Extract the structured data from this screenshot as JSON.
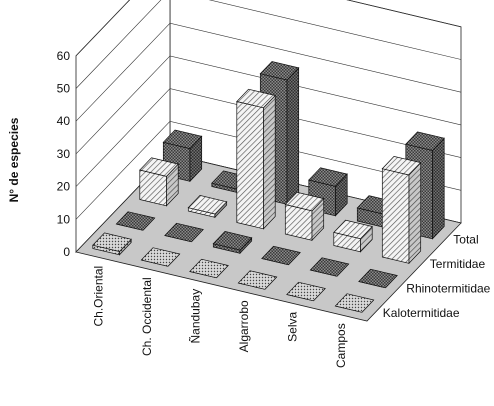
{
  "chart_data": {
    "type": "bar",
    "subtype": "3d-bar",
    "title": "",
    "ylabel": "N° de especies",
    "ylim": [
      0,
      60
    ],
    "yticks": [
      0,
      10,
      20,
      30,
      40,
      50,
      60
    ],
    "categories": [
      "Ch.Oriental",
      "Ch. Occidental",
      "Ñandubay",
      "Algarrobo",
      "Selva",
      "Campos"
    ],
    "series": [
      {
        "name": "Kalotermitidae",
        "values": [
          1,
          0,
          0,
          0,
          0,
          0
        ]
      },
      {
        "name": "Rhinotermitidae",
        "values": [
          0,
          0,
          1,
          0,
          0,
          0
        ]
      },
      {
        "name": "Termitidae",
        "values": [
          9,
          1,
          37,
          9,
          4,
          27
        ]
      },
      {
        "name": "Total",
        "values": [
          10,
          1,
          38,
          9,
          4,
          27
        ]
      }
    ],
    "rows_front_to_back": [
      "Kalotermitidae",
      "Rhinotermitidae",
      "Termitidae",
      "Total"
    ],
    "grid": true,
    "floor_color": "#c8c8c8"
  }
}
